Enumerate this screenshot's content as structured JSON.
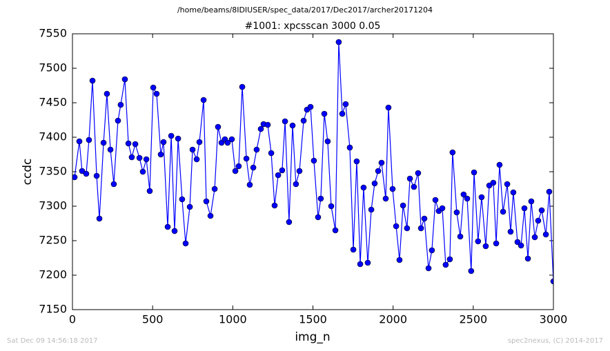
{
  "chart_data": {
    "type": "line",
    "suptitle": "/home/beams/8IDIUSER/spec_data/2017/Dec2017/archer20171204",
    "title": "#1001: xpcsscan 3000 0.05",
    "xlabel": "img_n",
    "ylabel": "ccdc",
    "footer_left": "Sat Dec 09 14:56:18 2017",
    "footer_right": "spec2nexus, (C) 2014-2017",
    "xlim": [
      0,
      3000
    ],
    "xticks": [
      0,
      500,
      1000,
      1500,
      2000,
      2500,
      3000
    ],
    "ylim": [
      7150,
      7550
    ],
    "yticks": [
      7150,
      7200,
      7250,
      7300,
      7350,
      7400,
      7450,
      7500,
      7550
    ],
    "x": [
      13,
      43,
      60,
      86,
      103,
      125,
      151,
      168,
      194,
      215,
      237,
      258,
      284,
      301,
      327,
      349,
      370,
      392,
      418,
      439,
      461,
      482,
      504,
      525,
      551,
      568,
      594,
      616,
      637,
      659,
      684,
      706,
      732,
      749,
      775,
      792,
      818,
      835,
      861,
      887,
      908,
      930,
      951,
      968,
      994,
      1016,
      1037,
      1059,
      1085,
      1106,
      1128,
      1149,
      1175,
      1192,
      1218,
      1240,
      1261,
      1283,
      1308,
      1326,
      1351,
      1373,
      1394,
      1416,
      1442,
      1463,
      1485,
      1506,
      1532,
      1549,
      1571,
      1592,
      1614,
      1640,
      1661,
      1683,
      1704,
      1730,
      1752,
      1773,
      1795,
      1816,
      1842,
      1864,
      1885,
      1907,
      1928,
      1954,
      1971,
      1997,
      2019,
      2040,
      2062,
      2087,
      2105,
      2130,
      2156,
      2174,
      2195,
      2221,
      2242,
      2264,
      2285,
      2307,
      2328,
      2354,
      2371,
      2397,
      2419,
      2440,
      2462,
      2487,
      2505,
      2530,
      2552,
      2578,
      2600,
      2625,
      2643,
      2664,
      2686,
      2712,
      2733,
      2750,
      2776,
      2798,
      2819,
      2841,
      2862,
      2884,
      2905,
      2927,
      2953,
      2974,
      3000
    ],
    "series": [
      {
        "name": "ccdc",
        "color": "#0000ff",
        "values": [
          7342,
          7394,
          7351,
          7347,
          7396,
          7482,
          7344,
          7282,
          7392,
          7463,
          7382,
          7332,
          7424,
          7447,
          7484,
          7391,
          7371,
          7390,
          7370,
          7350,
          7368,
          7322,
          7472,
          7463,
          7375,
          7393,
          7270,
          7402,
          7264,
          7398,
          7310,
          7246,
          7299,
          7382,
          7368,
          7393,
          7454,
          7307,
          7286,
          7325,
          7415,
          7392,
          7397,
          7392,
          7397,
          7351,
          7358,
          7473,
          7369,
          7331,
          7356,
          7382,
          7412,
          7419,
          7418,
          7377,
          7301,
          7345,
          7352,
          7423,
          7277,
          7417,
          7332,
          7351,
          7424,
          7440,
          7444,
          7366,
          7284,
          7311,
          7434,
          7394,
          7300,
          7265,
          7538,
          7434,
          7448,
          7385,
          7237,
          7365,
          7216,
          7327,
          7218,
          7295,
          7333,
          7351,
          7363,
          7311,
          7443,
          7325,
          7271,
          7222,
          7301,
          7268,
          7340,
          7328,
          7348,
          7268,
          7282,
          7210,
          7236,
          7309,
          7293,
          7297,
          7215,
          7223,
          7378,
          7291,
          7256,
          7317,
          7311,
          7206,
          7349,
          7249,
          7313,
          7242,
          7330,
          7334,
          7246,
          7360,
          7292,
          7332,
          7263,
          7320,
          7248,
          7243,
          7297,
          7224,
          7307,
          7255,
          7279,
          7294,
          7259,
          7321,
          7191
        ]
      }
    ]
  }
}
